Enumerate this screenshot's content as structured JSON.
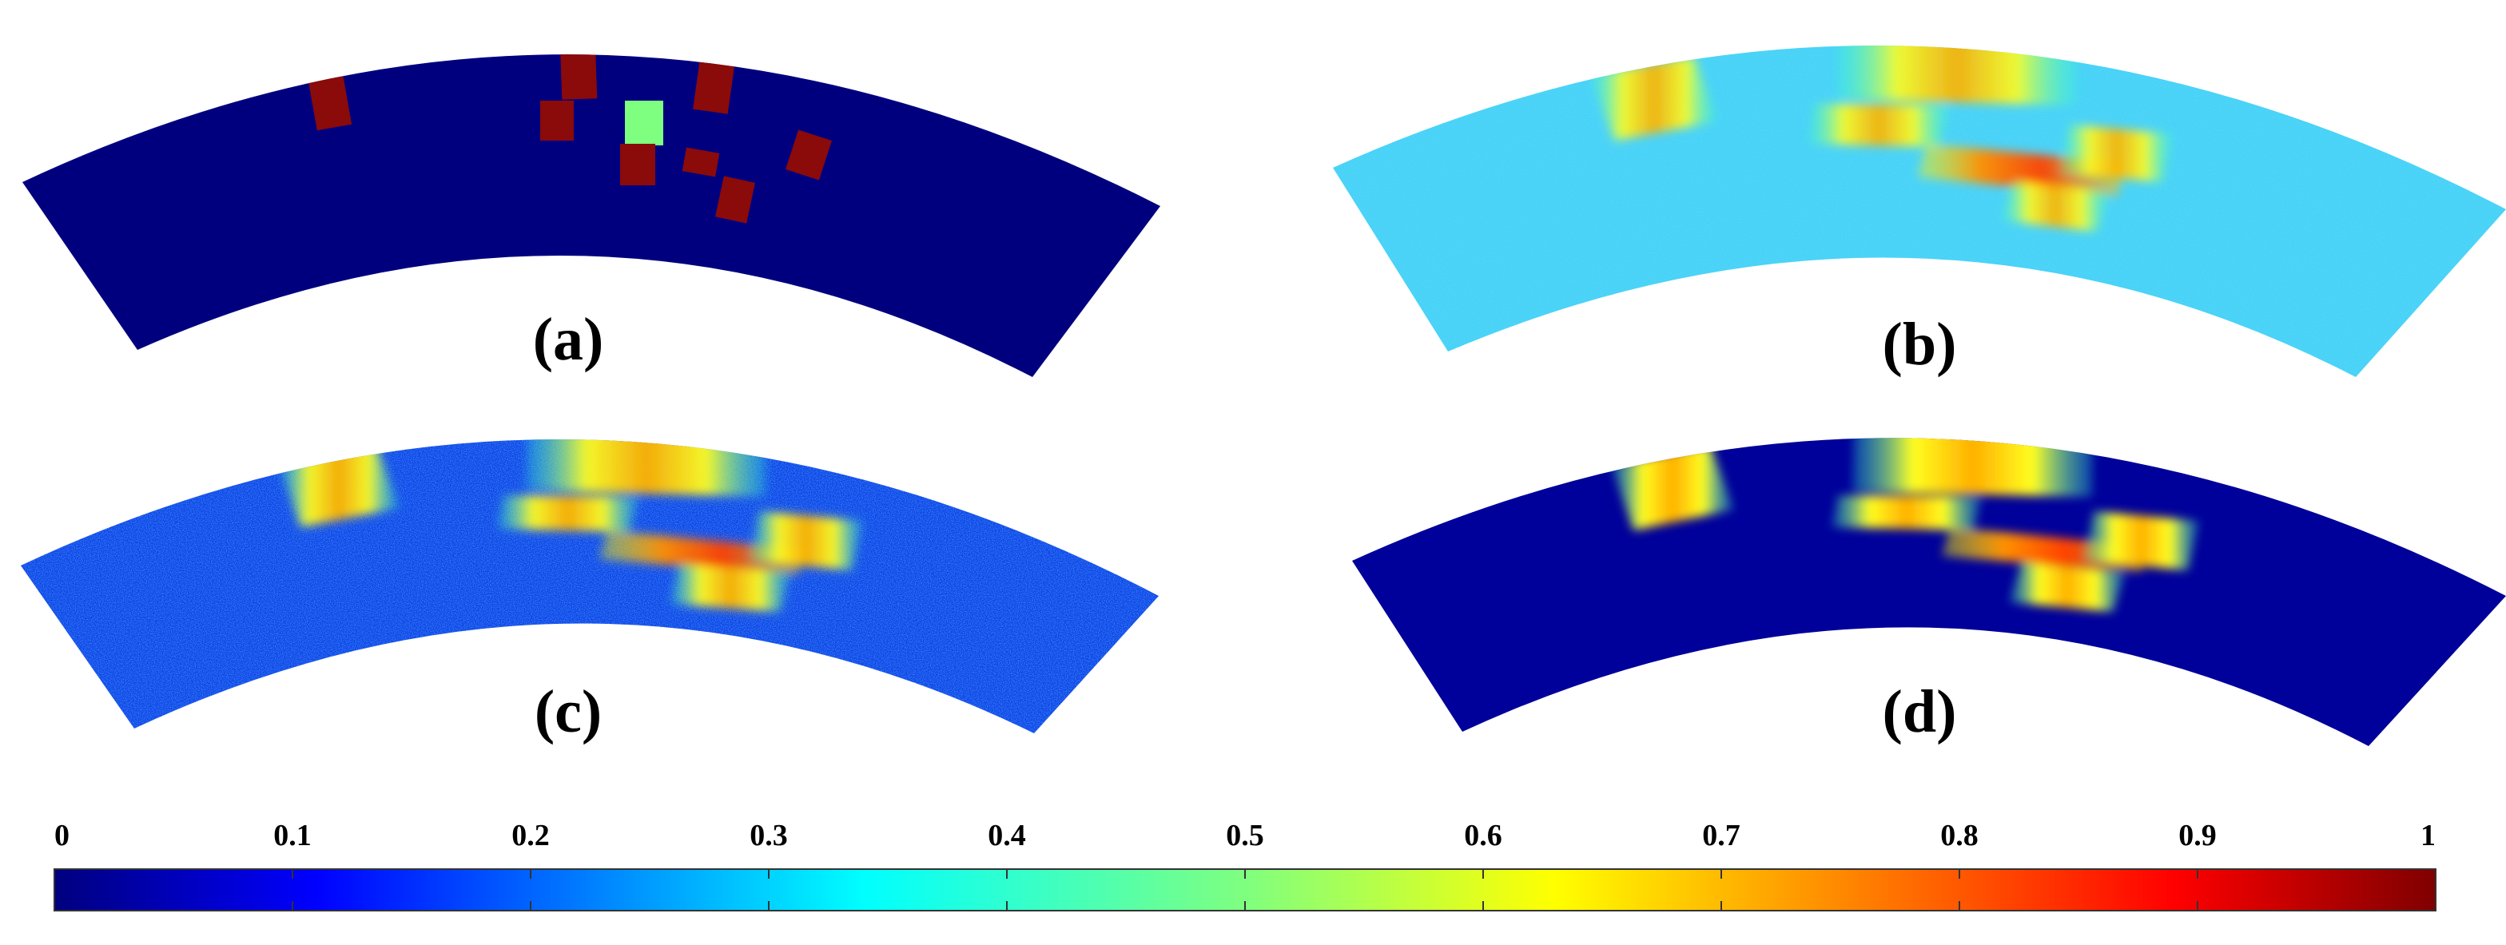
{
  "panels": [
    {
      "label": "(a)"
    },
    {
      "label": "(b)"
    },
    {
      "label": "(c)"
    },
    {
      "label": "(d)"
    }
  ],
  "colorbar": {
    "colormap": "jet",
    "ticks": [
      "0",
      "0.1",
      "0.2",
      "0.3",
      "0.4",
      "0.5",
      "0.6",
      "0.7",
      "0.8",
      "0.9",
      "1"
    ],
    "stops": [
      "#00007f",
      "#0000ff",
      "#007fff",
      "#00ffff",
      "#7fff7f",
      "#ffff00",
      "#ff7f00",
      "#ff0000",
      "#7f0000"
    ]
  },
  "colors": {
    "background_dark": "#00007f",
    "background_cyan": "#3fd3f5",
    "background_blue": "#0a3fe6",
    "defect": "#8b0a0a",
    "highlight": "#7fff7f"
  }
}
